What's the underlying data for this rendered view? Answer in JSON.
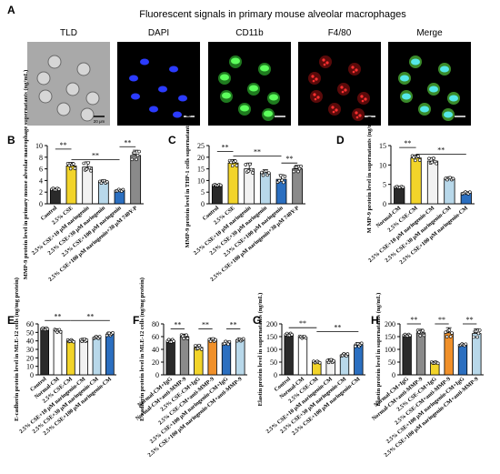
{
  "panel_a": {
    "letter": "A",
    "title": "Fluorescent signals in primary mouse alveolar macrophages",
    "channels": [
      {
        "label": "TLD",
        "kind": "brightfield"
      },
      {
        "label": "DAPI",
        "kind": "blue"
      },
      {
        "label": "CD11b",
        "kind": "green"
      },
      {
        "label": "F4/80",
        "kind": "red"
      },
      {
        "label": "Merge",
        "kind": "merge"
      }
    ],
    "scale_bar": "20 μm"
  },
  "colors": {
    "control": "#2a2a2a",
    "cse": "#f2d42a",
    "n10": "#f2f2f2",
    "n30": "#b8d8ea",
    "n100": "#2b6fc0",
    "inhibitor": "#8a8a8a",
    "elastin_mmp": "#f0902a",
    "igg_white": "#ffffff"
  },
  "sig": "**",
  "chart_data": [
    {
      "panel": "B",
      "type": "bar",
      "ylabel": "MMP-9 protein level in primary mouse alveolar macrophage supernatants (ng/mL)",
      "ylim": [
        0,
        10
      ],
      "yticks": [
        0,
        2,
        4,
        6,
        8,
        10
      ],
      "categories": [
        "Control",
        "2.5% CSE",
        "2.5% CSE+10 μM naringenin",
        "2.5% CSE+30 μM naringenin",
        "2.5% CSE+100 μM naringenin",
        "2.5% CSE+100 μM naringenin+30 μM 740Y-P"
      ],
      "values": [
        2.5,
        6.5,
        6.3,
        3.8,
        2.3,
        8.3
      ],
      "errors": [
        0.2,
        0.6,
        0.9,
        0.3,
        0.2,
        0.9
      ],
      "fills": [
        "control",
        "cse",
        "n10",
        "n30",
        "n100",
        "inhibitor"
      ]
    },
    {
      "panel": "C",
      "type": "bar",
      "ylabel": "MMP-9 protein level in THP-1 cells supernatants (ng/mL)",
      "ylim": [
        0,
        25
      ],
      "yticks": [
        0,
        5,
        10,
        15,
        20,
        25
      ],
      "categories": [
        "Control",
        "2.5% CSE",
        "2.5% CSE+10 μM naringenin",
        "2.5% CSE+30 μM naringenin",
        "2.5% CSE+100 μM naringenin",
        "2.5% CSE+100 μM naringenin+30 μM 740Y-P"
      ],
      "values": [
        8,
        17.5,
        15,
        13.3,
        10.5,
        15
      ],
      "errors": [
        0.3,
        1.5,
        2.5,
        1.3,
        2,
        1.5
      ],
      "fills": [
        "control",
        "cse",
        "n10",
        "n30",
        "n100",
        "inhibitor"
      ]
    },
    {
      "panel": "D",
      "type": "bar",
      "ylabel": "M MP-9 protein level in supernatants (ng/mL)",
      "ylim": [
        0,
        15
      ],
      "yticks": [
        0,
        5,
        10,
        15
      ],
      "categories": [
        "Normal-CM",
        "2.5% CSE-CM",
        "2.5% CSE+10 μM naringenin-CM",
        "2.5% CSE+30 μM naringenin-CM",
        "2.5% CSE+100 μM naringenin-CM"
      ],
      "values": [
        4.3,
        11.8,
        11,
        6.5,
        2.8
      ],
      "errors": [
        0.2,
        0.8,
        0.9,
        0.4,
        0.3
      ],
      "fills": [
        "control",
        "cse",
        "n10",
        "n30",
        "n100"
      ]
    },
    {
      "panel": "E",
      "type": "bar",
      "ylabel": "E-cadherin protein level in MLE-12 cells (ng/mg protein)",
      "ylim": [
        0,
        60
      ],
      "yticks": [
        0,
        10,
        20,
        30,
        40,
        50,
        60
      ],
      "categories": [
        "Control",
        "Normal-CM",
        "2.5% CSE-CM",
        "2.5% CSE+10 μM naringenin-CM",
        "2.5% CSE+30 μM naringenin-CM",
        "2.5% CSE+100 μM naringenin-CM"
      ],
      "values": [
        54,
        52,
        40,
        41,
        44,
        48
      ],
      "errors": [
        1.5,
        2,
        1.5,
        2,
        1.5,
        2
      ],
      "fills": [
        "control",
        "igg_white",
        "cse",
        "n10",
        "n30",
        "n100"
      ]
    },
    {
      "panel": "F",
      "type": "bar",
      "ylabel": "E-cadherin protein level in MLE-12 cells (ng/mg protein)",
      "ylim": [
        0,
        80
      ],
      "yticks": [
        0,
        20,
        40,
        60,
        80
      ],
      "categories": [
        "Normal-CM+IgG",
        "Normal-CM+anti-MMP-9",
        "2.5% CSE-CM+IgG",
        "2.5% CSE-CM+anti-MMP-9",
        "2.5% CSE+100 μM naringenin-CM+IgG",
        "2.5% CSE+100 μM naringenin-CM+anti-MMP-9"
      ],
      "values": [
        53,
        60,
        43,
        55,
        50,
        55
      ],
      "errors": [
        3,
        4,
        4,
        3,
        3,
        2
      ],
      "fills": [
        "control",
        "inhibitor",
        "cse",
        "elastin_mmp",
        "n100",
        "n30"
      ]
    },
    {
      "panel": "G",
      "type": "bar",
      "ylabel": "Elastin protein level in supernatants (ng/mL)",
      "ylim": [
        0,
        200
      ],
      "yticks": [
        0,
        50,
        100,
        150,
        200
      ],
      "categories": [
        "Control",
        "Normal-CM",
        "2.5% CSE-CM",
        "2.5% CSE+10 μM naringenin-CM",
        "2.5% CSE+30 μM naringenin-CM",
        "2.5% CSE+100 μM naringenin-CM"
      ],
      "values": [
        158,
        148,
        50,
        55,
        78,
        118
      ],
      "errors": [
        6,
        5,
        4,
        8,
        6,
        8
      ],
      "fills": [
        "control",
        "igg_white",
        "cse",
        "n10",
        "n30",
        "n100"
      ]
    },
    {
      "panel": "H",
      "type": "bar",
      "ylabel": "Elastin protein level in supernatants (ng/mL)",
      "ylim": [
        0,
        200
      ],
      "yticks": [
        0,
        50,
        100,
        150,
        200
      ],
      "categories": [
        "Normal-CM+IgG",
        "Normal-CM+anti-MMP-9",
        "2.5% CSE-CM+IgG",
        "2.5% CSE-CM+anti-MMP-9",
        "2.5% CSE+100 μM naringenin-CM+IgG",
        "2.5% CSE+100 μM naringenin-CM+anti-MMP-9"
      ],
      "values": [
        155,
        165,
        48,
        165,
        118,
        162
      ],
      "errors": [
        5,
        14,
        4,
        20,
        4,
        18
      ],
      "fills": [
        "control",
        "inhibitor",
        "cse",
        "elastin_mmp",
        "n100",
        "n30"
      ]
    }
  ]
}
